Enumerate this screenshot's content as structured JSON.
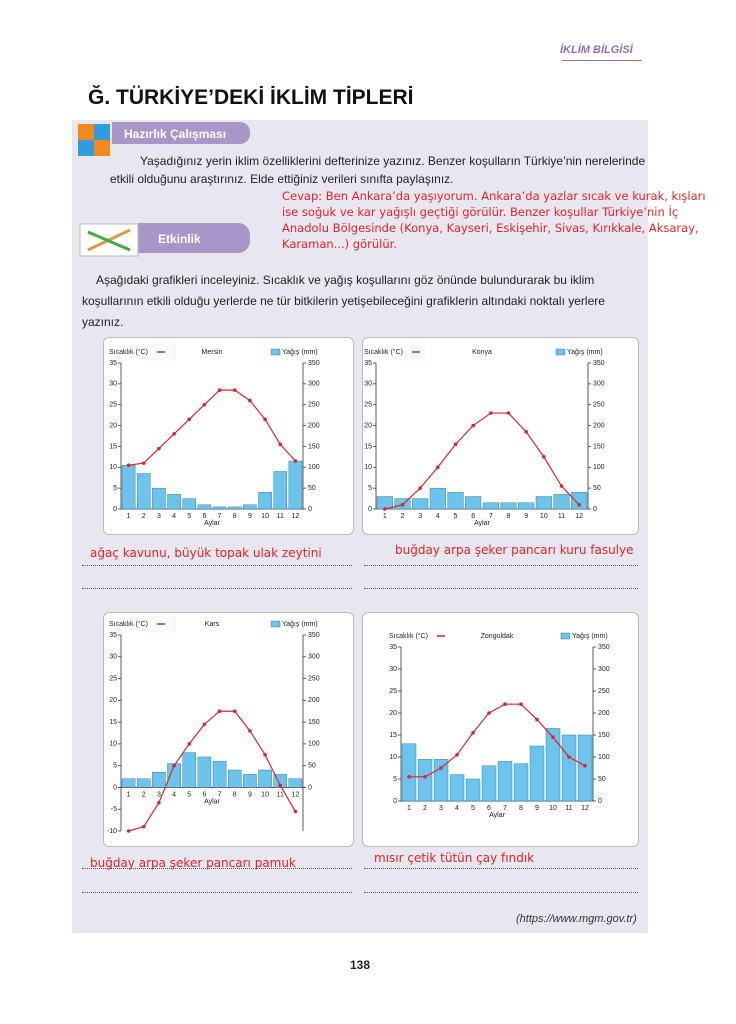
{
  "header": "İKLİM BİLGİSİ",
  "title": "Ğ. TÜRKİYE’DEKİ İKLİM TİPLERİ",
  "preparation": {
    "label": "Hazırlık Çalışması",
    "text": "Yaşadığınız yerin iklim özelliklerini defterinize yazınız. Benzer koşulların Türkiye’nin nerelerinde etkili olduğunu araştırınız. Elde ettiğiniz verileri sınıfta paylaşınız.",
    "answer": "Cevap: Ben Ankara’da yaşıyorum. Ankara’da yazlar sıcak ve kurak, kışları ise soğuk ve kar yağışlı geçtiği görülür. Benzer koşullar Türkiye’nin İç Anadolu Bölgesinde (Konya, Kayseri, Eskişehir, Sivas, Kırıkkale, Aksaray, Karaman...) görülür."
  },
  "activity": {
    "label": "Etkinlik",
    "text": "Aşağıdaki grafikleri inceleyiniz. Sıcaklık ve yağış koşullarını göz önünde bulundurarak bu iklim koşullarının etkili olduğu yerlerde ne tür bitkilerin yetişebileceğini grafiklerin altındaki noktalı yerlere yazınız."
  },
  "chart_data": [
    {
      "type": "combo",
      "title": "Mersin",
      "xlabel": "Aylar",
      "categories": [
        "1",
        "2",
        "3",
        "4",
        "5",
        "6",
        "7",
        "8",
        "9",
        "10",
        "11",
        "12"
      ],
      "series": [
        {
          "name": "Sıcaklık (°C)",
          "type": "line",
          "color": "#d7262e",
          "values": [
            10.5,
            11,
            14.5,
            18,
            21.5,
            25,
            28.5,
            28.5,
            26,
            21.5,
            15.5,
            11.5
          ]
        },
        {
          "name": "Yağış (mm)",
          "type": "bar",
          "axis": "y2",
          "color": "#6cc4ec",
          "values": [
            105,
            85,
            50,
            35,
            25,
            10,
            5,
            5,
            10,
            40,
            90,
            115
          ]
        }
      ],
      "ylim": [
        0,
        35
      ],
      "yticks": [
        0,
        5,
        10,
        15,
        20,
        25,
        30,
        35
      ],
      "y2lim": [
        0,
        350
      ],
      "y2ticks": [
        0,
        50,
        100,
        150,
        200,
        250,
        300,
        350
      ]
    },
    {
      "type": "combo",
      "title": "Konya",
      "xlabel": "Aylar",
      "categories": [
        "1",
        "2",
        "3",
        "4",
        "5",
        "6",
        "7",
        "8",
        "9",
        "10",
        "11",
        "12"
      ],
      "series": [
        {
          "name": "Sıcaklık (°C)",
          "type": "line",
          "color": "#d7262e",
          "values": [
            0,
            1,
            5,
            10,
            15.5,
            20,
            23,
            23,
            18.5,
            12.5,
            5.5,
            1
          ]
        },
        {
          "name": "Yağış (mm)",
          "type": "bar",
          "axis": "y2",
          "color": "#6cc4ec",
          "values": [
            30,
            25,
            25,
            50,
            40,
            30,
            15,
            15,
            15,
            30,
            35,
            40
          ]
        }
      ],
      "ylim": [
        0,
        35
      ],
      "yticks": [
        0,
        5,
        10,
        15,
        20,
        25,
        30,
        35
      ],
      "y2lim": [
        0,
        350
      ],
      "y2ticks": [
        0,
        50,
        100,
        150,
        200,
        250,
        300,
        350
      ]
    },
    {
      "type": "combo",
      "title": "Kars",
      "xlabel": "Aylar",
      "categories": [
        "1",
        "2",
        "3",
        "4",
        "5",
        "6",
        "7",
        "8",
        "9",
        "10",
        "11",
        "12"
      ],
      "series": [
        {
          "name": "Sıcaklık (°C)",
          "type": "line",
          "color": "#d7262e",
          "values": [
            -10,
            -9,
            -3.5,
            5,
            10,
            14.5,
            17.5,
            17.5,
            13,
            7.5,
            0.5,
            -5.5
          ]
        },
        {
          "name": "Yağış (mm)",
          "type": "bar",
          "axis": "y2",
          "color": "#6cc4ec",
          "values": [
            20,
            20,
            35,
            55,
            80,
            70,
            60,
            40,
            30,
            40,
            30,
            20
          ]
        }
      ],
      "ylim": [
        -10,
        35
      ],
      "yticks": [
        -10,
        -5,
        0,
        5,
        10,
        15,
        20,
        25,
        30,
        35
      ],
      "y2lim": [
        -100,
        350
      ],
      "y2ticks": [
        0,
        50,
        100,
        150,
        200,
        250,
        300,
        350
      ]
    },
    {
      "type": "combo",
      "title": "Zonguldak",
      "xlabel": "Aylar",
      "categories": [
        "1",
        "2",
        "3",
        "4",
        "5",
        "6",
        "7",
        "8",
        "9",
        "10",
        "11",
        "12"
      ],
      "series": [
        {
          "name": "Sıcaklık (°C)",
          "type": "line",
          "color": "#d7262e",
          "values": [
            5.5,
            5.5,
            7.5,
            10.5,
            15.5,
            20,
            22,
            22,
            18.5,
            14.5,
            10,
            8
          ]
        },
        {
          "name": "Yağış (mm)",
          "type": "bar",
          "axis": "y2",
          "color": "#6cc4ec",
          "values": [
            130,
            95,
            95,
            60,
            50,
            80,
            90,
            85,
            125,
            165,
            150,
            150
          ]
        }
      ],
      "ylim": [
        0,
        35
      ],
      "yticks": [
        0,
        5,
        10,
        15,
        20,
        25,
        30,
        35
      ],
      "y2lim": [
        0,
        350
      ],
      "y2ticks": [
        0,
        50,
        100,
        150,
        200,
        250,
        300,
        350
      ]
    }
  ],
  "answers": [
    "ağaç kavunu, büyük topak ulak zeytini",
    "buğday arpa şeker pancarı kuru fasulye",
    "buğday arpa şeker pancarı pamuk",
    "mısır çetik tütün çay fındık"
  ],
  "source": "(https://www.mgm.gov.tr)",
  "page_number": "138"
}
